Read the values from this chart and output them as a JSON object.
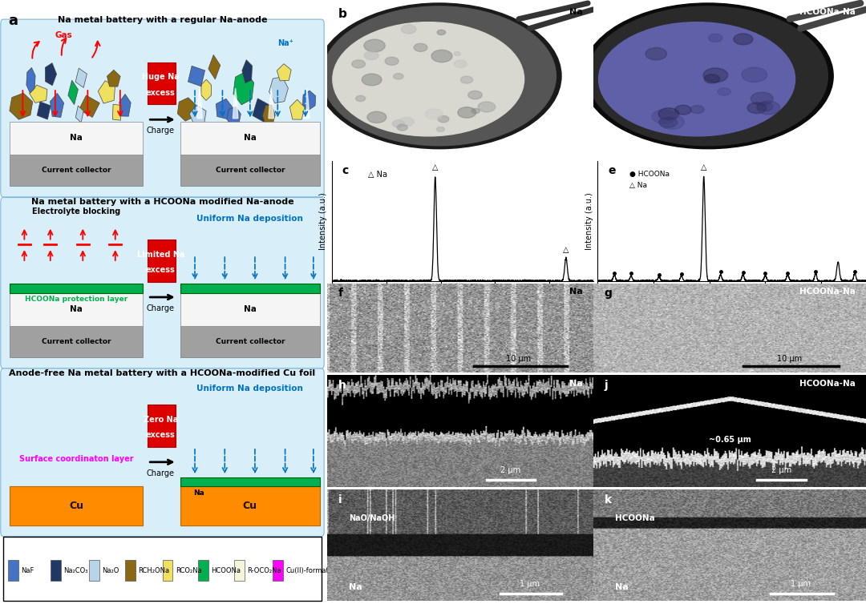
{
  "panel_a_title1": "Na metal battery with a regular Na-anode",
  "panel_a_title2": "Na metal battery with a HCOONa modified Na-anode",
  "panel_a_title3": "Anode-free Na metal battery with a HCOONa-modified Cu foil",
  "legend_items": [
    {
      "label": "NaF",
      "color": "#4472C4"
    },
    {
      "label": "Na₂CO₃",
      "color": "#1F3864"
    },
    {
      "label": "Na₂O",
      "color": "#B8D4E8"
    },
    {
      "label": "RCH₂ONa",
      "color": "#8B6914"
    },
    {
      "label": "RCO₂Na",
      "color": "#F0E060"
    },
    {
      "label": "HCOONa",
      "color": "#00B050"
    },
    {
      "label": "R-OCO₂Na",
      "color": "#F5F5DC"
    },
    {
      "label": "Cu(II)-formate",
      "color": "#FF00FF"
    }
  ],
  "crystal_colors_1": [
    "#8B6914",
    "#F0E060",
    "#4472C4",
    "#00B050",
    "#8B6914",
    "#F0E060",
    "#4472C4",
    "#4472C4",
    "#1F3864",
    "#B8D4E8",
    "#8B6914",
    "#1F3864",
    "#B8D4E8",
    "#F0E060"
  ],
  "crystal_colors_r1": [
    "#8B6914",
    "#F0E060",
    "#4472C4",
    "#00B050",
    "#1F3864",
    "#B8D4E8",
    "#F0E060",
    "#4472C4",
    "#8B6914",
    "#1F3864",
    "#F0E060",
    "#B8D4E8",
    "#4472C4",
    "#8B6914",
    "#4472C4"
  ],
  "bg_panel": "#D8EEF8",
  "green": "#00B050",
  "orange": "#FF8C00",
  "gray_cc": "#A0A0A0",
  "na_layer": "#F5F5F5",
  "red_box": "#DD0000",
  "blue_text": "#0070C0",
  "magenta": "#FF00FF",
  "white_layer": "#F8F8F0"
}
